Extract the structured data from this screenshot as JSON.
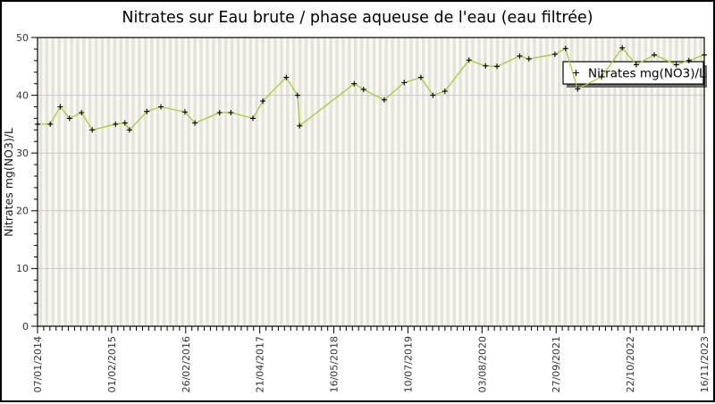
{
  "chart_data": {
    "type": "line",
    "title": "Nitrates sur Eau brute / phase aqueuse de l'eau (eau filtrée)",
    "xlabel": "",
    "ylabel": "Nitrates mg(NO3)/L",
    "ylim": [
      0,
      50
    ],
    "y_major_ticks": [
      0,
      10,
      20,
      30,
      40,
      50
    ],
    "y_minor_step": 2,
    "x_tick_labels": [
      "07/01/2014",
      "01/02/2015",
      "26/02/2016",
      "21/04/2017",
      "16/05/2018",
      "10/07/2019",
      "03/08/2020",
      "27/09/2021",
      "22/10/2022",
      "16/11/2023"
    ],
    "x_minor_per_major": 12,
    "grid": "vertical monthly stripes + horizontal major gridlines",
    "legend": {
      "label": "Nitrates mg(NO3)/L",
      "position": "top-right",
      "boxed": true,
      "marker": "plus"
    },
    "series": [
      {
        "name": "Nitrates mg(NO3)/L",
        "marker": "plus",
        "points_format": "[fraction_of_x_axis, mg_NO3_per_L]",
        "points": [
          [
            0.0,
            35
          ],
          [
            0.019,
            35
          ],
          [
            0.034,
            38
          ],
          [
            0.048,
            36
          ],
          [
            0.066,
            37
          ],
          [
            0.082,
            34
          ],
          [
            0.117,
            35
          ],
          [
            0.131,
            35.2
          ],
          [
            0.138,
            34
          ],
          [
            0.164,
            37.2
          ],
          [
            0.185,
            38
          ],
          [
            0.221,
            37.1
          ],
          [
            0.236,
            35.2
          ],
          [
            0.273,
            37
          ],
          [
            0.29,
            37
          ],
          [
            0.323,
            36
          ],
          [
            0.338,
            39
          ],
          [
            0.373,
            43.1
          ],
          [
            0.39,
            40
          ],
          [
            0.393,
            34.7
          ],
          [
            0.475,
            42
          ],
          [
            0.489,
            41
          ],
          [
            0.52,
            39.2
          ],
          [
            0.55,
            42.2
          ],
          [
            0.575,
            43.1
          ],
          [
            0.593,
            40
          ],
          [
            0.611,
            40.7
          ],
          [
            0.647,
            46.1
          ],
          [
            0.672,
            45.1
          ],
          [
            0.689,
            45
          ],
          [
            0.723,
            46.8
          ],
          [
            0.737,
            46.3
          ],
          [
            0.776,
            47.1
          ],
          [
            0.792,
            48.1
          ],
          [
            0.81,
            41.1
          ],
          [
            0.846,
            43.2
          ],
          [
            0.877,
            48.2
          ],
          [
            0.898,
            45.3
          ],
          [
            0.925,
            47
          ],
          [
            0.958,
            45.3
          ],
          [
            0.977,
            46
          ],
          [
            1.0,
            47
          ]
        ]
      }
    ]
  },
  "colors": {
    "line": "#a4cc39",
    "marker": "#000000",
    "plot_bg": "#fafaf2",
    "stripe": "#e4e4dc",
    "grid": "#c9c9c9",
    "axis": "#000000",
    "tick_text": "#333333",
    "legend_bg": "#ffffff",
    "legend_border": "#000000",
    "legend_shadow": "#6b6b6b"
  }
}
